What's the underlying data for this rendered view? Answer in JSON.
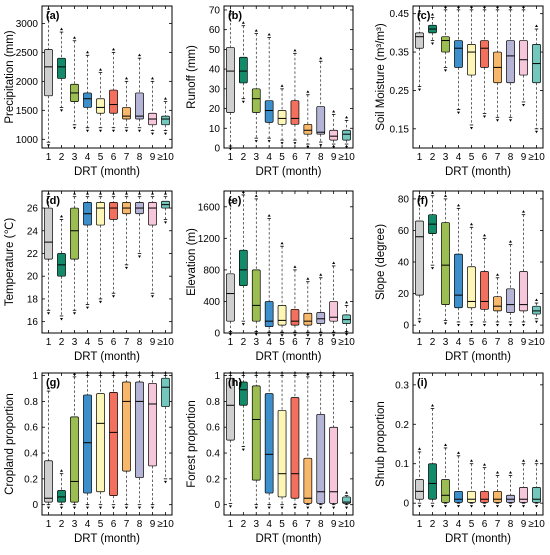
{
  "box_colors": [
    "#cfcfcf",
    "#138a6a",
    "#9cbd52",
    "#3d8fcb",
    "#fdf6b6",
    "#f2705d",
    "#f8b86b",
    "#b4b4d6",
    "#f6c7da",
    "#74c7bd"
  ],
  "chart_data": [
    {
      "type": "box",
      "label": "(a)",
      "xlabel": "DRT (month)",
      "ylabel": "Precipitation (mm)",
      "ylim": [
        850,
        3300
      ],
      "yticks": [
        1000,
        1500,
        2000,
        2500,
        3000
      ],
      "categories": [
        "1",
        "2",
        "3",
        "4",
        "5",
        "6",
        "7",
        "8",
        "9",
        "≥10"
      ],
      "boxes": [
        {
          "min": 950,
          "q1": 1750,
          "median": 2250,
          "q3": 2550,
          "max": 3200
        },
        {
          "min": 1550,
          "q1": 2050,
          "median": 2250,
          "q3": 2400,
          "max": 2850
        },
        {
          "min": 1250,
          "q1": 1650,
          "median": 1800,
          "q3": 1950,
          "max": 2700
        },
        {
          "min": 1200,
          "q1": 1550,
          "median": 1700,
          "q3": 1800,
          "max": 2450
        },
        {
          "min": 1200,
          "q1": 1450,
          "median": 1550,
          "q3": 1700,
          "max": 2150
        },
        {
          "min": 1200,
          "q1": 1450,
          "median": 1600,
          "q3": 1850,
          "max": 2500
        },
        {
          "min": 1200,
          "q1": 1350,
          "median": 1400,
          "q3": 1550,
          "max": 2000
        },
        {
          "min": 1200,
          "q1": 1350,
          "median": 1400,
          "q3": 1800,
          "max": 2400
        },
        {
          "min": 1150,
          "q1": 1250,
          "median": 1350,
          "q3": 1450,
          "max": 2000
        },
        {
          "min": 1150,
          "q1": 1250,
          "median": 1350,
          "q3": 1400,
          "max": 1650
        }
      ]
    },
    {
      "type": "box",
      "label": "(b)",
      "xlabel": "DRT (month)",
      "ylabel": "Runoff (mm)",
      "ylim": [
        0,
        72
      ],
      "yticks": [
        0,
        10,
        20,
        30,
        40,
        50,
        60,
        70
      ],
      "categories": [
        "1",
        "2",
        "3",
        "4",
        "5",
        "6",
        "7",
        "8",
        "9",
        "≥10"
      ],
      "boxes": [
        {
          "min": 1,
          "q1": 18,
          "median": 39,
          "q3": 51,
          "max": 68
        },
        {
          "min": 25,
          "q1": 33,
          "median": 39,
          "q3": 46,
          "max": 62
        },
        {
          "min": 5,
          "q1": 18,
          "median": 25,
          "q3": 30,
          "max": 58
        },
        {
          "min": 5,
          "q1": 13,
          "median": 19,
          "q3": 24,
          "max": 56
        },
        {
          "min": 4,
          "q1": 12,
          "median": 15,
          "q3": 19,
          "max": 30
        },
        {
          "min": 4,
          "q1": 12,
          "median": 15,
          "q3": 24,
          "max": 48
        },
        {
          "min": 2,
          "q1": 7,
          "median": 9,
          "q3": 12,
          "max": 27
        },
        {
          "min": 3,
          "q1": 7,
          "median": 8,
          "q3": 21,
          "max": 44
        },
        {
          "min": 2,
          "q1": 4,
          "median": 6,
          "q3": 9,
          "max": 17
        },
        {
          "min": 2,
          "q1": 4,
          "median": 7,
          "q3": 9,
          "max": 14
        }
      ]
    },
    {
      "type": "box",
      "label": "(c)",
      "xlabel": "DRT (month)",
      "ylabel": "Soil Moisture (m³/m³)",
      "ylim": [
        0.1,
        0.47
      ],
      "yticks": [
        0.15,
        0.25,
        0.35,
        0.45
      ],
      "categories": [
        "1",
        "2",
        "3",
        "4",
        "5",
        "6",
        "7",
        "8",
        "9",
        "≥10"
      ],
      "boxes": [
        {
          "min": 0.26,
          "q1": 0.36,
          "median": 0.39,
          "q3": 0.4,
          "max": 0.45
        },
        {
          "min": 0.38,
          "q1": 0.4,
          "median": 0.41,
          "q3": 0.42,
          "max": 0.44
        },
        {
          "min": 0.31,
          "q1": 0.35,
          "median": 0.38,
          "q3": 0.39,
          "max": 0.46
        },
        {
          "min": 0.2,
          "q1": 0.31,
          "median": 0.36,
          "q3": 0.38,
          "max": 0.46
        },
        {
          "min": 0.16,
          "q1": 0.29,
          "median": 0.35,
          "q3": 0.37,
          "max": 0.46
        },
        {
          "min": 0.19,
          "q1": 0.31,
          "median": 0.36,
          "q3": 0.38,
          "max": 0.46
        },
        {
          "min": 0.18,
          "q1": 0.27,
          "median": 0.31,
          "q3": 0.35,
          "max": 0.46
        },
        {
          "min": 0.18,
          "q1": 0.27,
          "median": 0.34,
          "q3": 0.38,
          "max": 0.46
        },
        {
          "min": 0.22,
          "q1": 0.29,
          "median": 0.33,
          "q3": 0.38,
          "max": 0.46
        },
        {
          "min": 0.15,
          "q1": 0.27,
          "median": 0.32,
          "q3": 0.37,
          "max": 0.41
        }
      ]
    },
    {
      "type": "box",
      "label": "(d)",
      "xlabel": "DRT (month)",
      "ylabel": "Temperature (℃)",
      "ylim": [
        15,
        27.5
      ],
      "yticks": [
        16,
        18,
        20,
        22,
        24,
        26
      ],
      "categories": [
        "1",
        "2",
        "3",
        "4",
        "5",
        "6",
        "7",
        "8",
        "9",
        "≥10"
      ],
      "boxes": [
        {
          "min": 17,
          "q1": 21.5,
          "median": 23,
          "q3": 26,
          "max": 27
        },
        {
          "min": 16.5,
          "q1": 20,
          "median": 21,
          "q3": 22,
          "max": 25
        },
        {
          "min": 17,
          "q1": 21.5,
          "median": 24,
          "q3": 26,
          "max": 27
        },
        {
          "min": 17.5,
          "q1": 24.5,
          "median": 25.5,
          "q3": 26.5,
          "max": 27
        },
        {
          "min": 18,
          "q1": 24.5,
          "median": 26,
          "q3": 26.5,
          "max": 27
        },
        {
          "min": 18.5,
          "q1": 25,
          "median": 26,
          "q3": 26.5,
          "max": 27
        },
        {
          "min": 21,
          "q1": 25.5,
          "median": 26,
          "q3": 26.5,
          "max": 27
        },
        {
          "min": 22,
          "q1": 25.5,
          "median": 26,
          "q3": 26.5,
          "max": 27
        },
        {
          "min": 18.5,
          "q1": 24.5,
          "median": 26,
          "q3": 26.5,
          "max": 27
        },
        {
          "min": 25,
          "q1": 26,
          "median": 26.3,
          "q3": 26.6,
          "max": 27
        }
      ]
    },
    {
      "type": "box",
      "label": "(e)",
      "xlabel": "DRT (month)",
      "ylabel": "Elevation (m)",
      "ylim": [
        0,
        1800
      ],
      "yticks": [
        0,
        400,
        800,
        1200,
        1600
      ],
      "categories": [
        "1",
        "2",
        "3",
        "4",
        "5",
        "6",
        "7",
        "8",
        "9",
        "≥10"
      ],
      "boxes": [
        {
          "min": 20,
          "q1": 150,
          "median": 500,
          "q3": 750,
          "max": 1650
        },
        {
          "min": 150,
          "q1": 600,
          "median": 800,
          "q3": 1050,
          "max": 1750
        },
        {
          "min": 20,
          "q1": 150,
          "median": 350,
          "q3": 800,
          "max": 1700
        },
        {
          "min": 10,
          "q1": 80,
          "median": 150,
          "q3": 400,
          "max": 1450
        },
        {
          "min": 10,
          "q1": 100,
          "median": 160,
          "q3": 350,
          "max": 1100
        },
        {
          "min": 10,
          "q1": 100,
          "median": 150,
          "q3": 300,
          "max": 800
        },
        {
          "min": 10,
          "q1": 100,
          "median": 150,
          "q3": 250,
          "max": 650
        },
        {
          "min": 10,
          "q1": 120,
          "median": 180,
          "q3": 260,
          "max": 700
        },
        {
          "min": 10,
          "q1": 150,
          "median": 200,
          "q3": 400,
          "max": 850
        },
        {
          "min": 20,
          "q1": 120,
          "median": 170,
          "q3": 230,
          "max": 350
        }
      ]
    },
    {
      "type": "box",
      "label": "(f)",
      "xlabel": "DRT (month)",
      "ylabel": "Slope (degree)",
      "ylim": [
        -5,
        85
      ],
      "yticks": [
        0,
        20,
        40,
        60,
        80
      ],
      "categories": [
        "1",
        "2",
        "3",
        "4",
        "5",
        "6",
        "7",
        "8",
        "9",
        "≥10"
      ],
      "boxes": [
        {
          "min": 4,
          "q1": 19,
          "median": 56,
          "q3": 66,
          "max": 80
        },
        {
          "min": 38,
          "q1": 58,
          "median": 64,
          "q3": 70,
          "max": 82
        },
        {
          "min": 3,
          "q1": 13,
          "median": 38,
          "q3": 65,
          "max": 80
        },
        {
          "min": 2,
          "q1": 11,
          "median": 19,
          "q3": 45,
          "max": 74
        },
        {
          "min": 2,
          "q1": 11,
          "median": 15,
          "q3": 37,
          "max": 62
        },
        {
          "min": 2,
          "q1": 10,
          "median": 15,
          "q3": 34,
          "max": 55
        },
        {
          "min": 2,
          "q1": 9,
          "median": 12,
          "q3": 18,
          "max": 30
        },
        {
          "min": 2,
          "q1": 8,
          "median": 13,
          "q3": 23,
          "max": 51
        },
        {
          "min": 2,
          "q1": 9,
          "median": 13,
          "q3": 34,
          "max": 70
        },
        {
          "min": 4,
          "q1": 7,
          "median": 9,
          "q3": 12,
          "max": 14
        }
      ]
    },
    {
      "type": "box",
      "label": "(g)",
      "xlabel": "DRT (month)",
      "ylabel": "Cropland proportion",
      "ylim": [
        -0.08,
        1.02
      ],
      "yticks": [
        0,
        0.2,
        0.4,
        0.6,
        0.8,
        1
      ],
      "categories": [
        "1",
        "2",
        "3",
        "4",
        "5",
        "6",
        "7",
        "8",
        "9",
        "≥10"
      ],
      "boxes": [
        {
          "min": 0,
          "q1": 0.02,
          "median": 0.05,
          "q3": 0.34,
          "max": 0.88
        },
        {
          "min": 0,
          "q1": 0.02,
          "median": 0.06,
          "q3": 0.11,
          "max": 0.24
        },
        {
          "min": 0,
          "q1": 0.02,
          "median": 0.18,
          "q3": 0.68,
          "max": 0.99
        },
        {
          "min": 0,
          "q1": 0.09,
          "median": 0.48,
          "q3": 0.85,
          "max": 1
        },
        {
          "min": 0,
          "q1": 0.1,
          "median": 0.63,
          "q3": 0.86,
          "max": 1
        },
        {
          "min": 0,
          "q1": 0.07,
          "median": 0.56,
          "q3": 0.87,
          "max": 1
        },
        {
          "min": 0,
          "q1": 0.26,
          "median": 0.8,
          "q3": 0.95,
          "max": 1
        },
        {
          "min": 0,
          "q1": 0.21,
          "median": 0.8,
          "q3": 0.95,
          "max": 1
        },
        {
          "min": 0,
          "q1": 0.3,
          "median": 0.78,
          "q3": 0.94,
          "max": 1
        },
        {
          "min": 0.2,
          "q1": 0.76,
          "median": 0.91,
          "q3": 0.98,
          "max": 1
        }
      ]
    },
    {
      "type": "box",
      "label": "(h)",
      "xlabel": "DRT (month)",
      "ylabel": "Forest proportion",
      "ylim": [
        -0.08,
        1.02
      ],
      "yticks": [
        0,
        0.2,
        0.4,
        0.6,
        0.8,
        1
      ],
      "categories": [
        "1",
        "2",
        "3",
        "4",
        "5",
        "6",
        "7",
        "8",
        "9",
        "≥10"
      ],
      "boxes": [
        {
          "min": 0.01,
          "q1": 0.5,
          "median": 0.77,
          "q3": 0.98,
          "max": 1
        },
        {
          "min": 0.45,
          "q1": 0.77,
          "median": 0.89,
          "q3": 0.95,
          "max": 1
        },
        {
          "min": 0,
          "q1": 0.19,
          "median": 0.66,
          "q3": 0.92,
          "max": 1
        },
        {
          "min": 0,
          "q1": 0.09,
          "median": 0.39,
          "q3": 0.86,
          "max": 1
        },
        {
          "min": 0,
          "q1": 0.06,
          "median": 0.24,
          "q3": 0.73,
          "max": 1
        },
        {
          "min": 0,
          "q1": 0.05,
          "median": 0.24,
          "q3": 0.83,
          "max": 1
        },
        {
          "min": 0,
          "q1": 0.01,
          "median": 0.05,
          "q3": 0.36,
          "max": 0.99
        },
        {
          "min": 0,
          "q1": 0.01,
          "median": 0.1,
          "q3": 0.7,
          "max": 1
        },
        {
          "min": 0,
          "q1": 0.01,
          "median": 0.1,
          "q3": 0.6,
          "max": 1
        },
        {
          "min": 0,
          "q1": 0.01,
          "median": 0.02,
          "q3": 0.06,
          "max": 0.07
        }
      ]
    },
    {
      "type": "box",
      "label": "(i)",
      "xlabel": "DRT (month)",
      "ylabel": "Shrub proportion",
      "ylim": [
        -0.03,
        0.33
      ],
      "yticks": [
        0,
        0.1,
        0.2,
        0.3
      ],
      "categories": [
        "1",
        "2",
        "3",
        "4",
        "5",
        "6",
        "7",
        "8",
        "9",
        "≥10"
      ],
      "boxes": [
        {
          "min": 0,
          "q1": 0.01,
          "median": 0.03,
          "q3": 0.06,
          "max": 0.13
        },
        {
          "min": 0,
          "q1": 0.01,
          "median": 0.05,
          "q3": 0.1,
          "max": 0.24
        },
        {
          "min": 0,
          "q1": 0.002,
          "median": 0.02,
          "q3": 0.06,
          "max": 0.14
        },
        {
          "min": 0,
          "q1": 0.002,
          "median": 0.01,
          "q3": 0.03,
          "max": 0.12
        },
        {
          "min": 0,
          "q1": 0.002,
          "median": 0.01,
          "q3": 0.03,
          "max": 0.1
        },
        {
          "min": 0,
          "q1": 0.002,
          "median": 0.01,
          "q3": 0.03,
          "max": 0.09
        },
        {
          "min": 0,
          "q1": 0.002,
          "median": 0.01,
          "q3": 0.03,
          "max": 0.07
        },
        {
          "min": 0,
          "q1": 0.002,
          "median": 0.01,
          "q3": 0.02,
          "max": 0.07
        },
        {
          "min": 0,
          "q1": 0.002,
          "median": 0.01,
          "q3": 0.04,
          "max": 0.1
        },
        {
          "min": 0,
          "q1": 0.002,
          "median": 0.01,
          "q3": 0.04,
          "max": 0.1
        }
      ]
    }
  ]
}
